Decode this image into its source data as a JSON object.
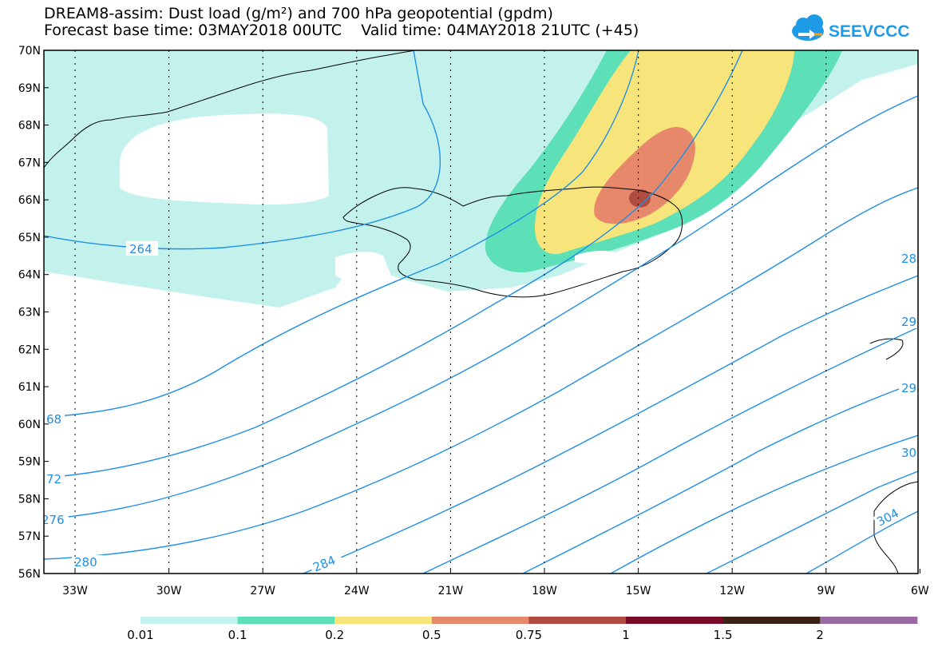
{
  "title": {
    "line1": "DREAM8-assim: Dust load (g/m²) and 700 hPa geopotential (gpdm)",
    "line2": "Forecast base time: 03MAY2018 00UTC    Valid time: 04MAY2018 21UTC (+45)"
  },
  "logo": {
    "text": "SEEVCCC",
    "icon": "cloud-icon",
    "color": "#1e9be6"
  },
  "axes": {
    "lat_labels": [
      "70N",
      "69N",
      "68N",
      "67N",
      "66N",
      "65N",
      "64N",
      "63N",
      "62N",
      "61N",
      "60N",
      "59N",
      "58N",
      "57N",
      "56N"
    ],
    "lon_labels": [
      "33W",
      "30W",
      "27W",
      "24W",
      "21W",
      "18W",
      "15W",
      "12W",
      "9W",
      "6W"
    ]
  },
  "contours": {
    "color": "#1f8fe8",
    "labels": [
      "264",
      "68",
      "72",
      "276",
      "280",
      "284",
      "28",
      "29",
      "29",
      "30",
      "304"
    ]
  },
  "colorbar": {
    "colors": [
      "#c3f2ec",
      "#5de0b8",
      "#f7e47a",
      "#e8886a",
      "#b04c40",
      "#7a0a28",
      "#3a2214",
      "#9a6aa4"
    ],
    "labels": [
      "0.01",
      "0.1",
      "0.2",
      "0.5",
      "0.75",
      "1",
      "1.5",
      "2"
    ]
  }
}
